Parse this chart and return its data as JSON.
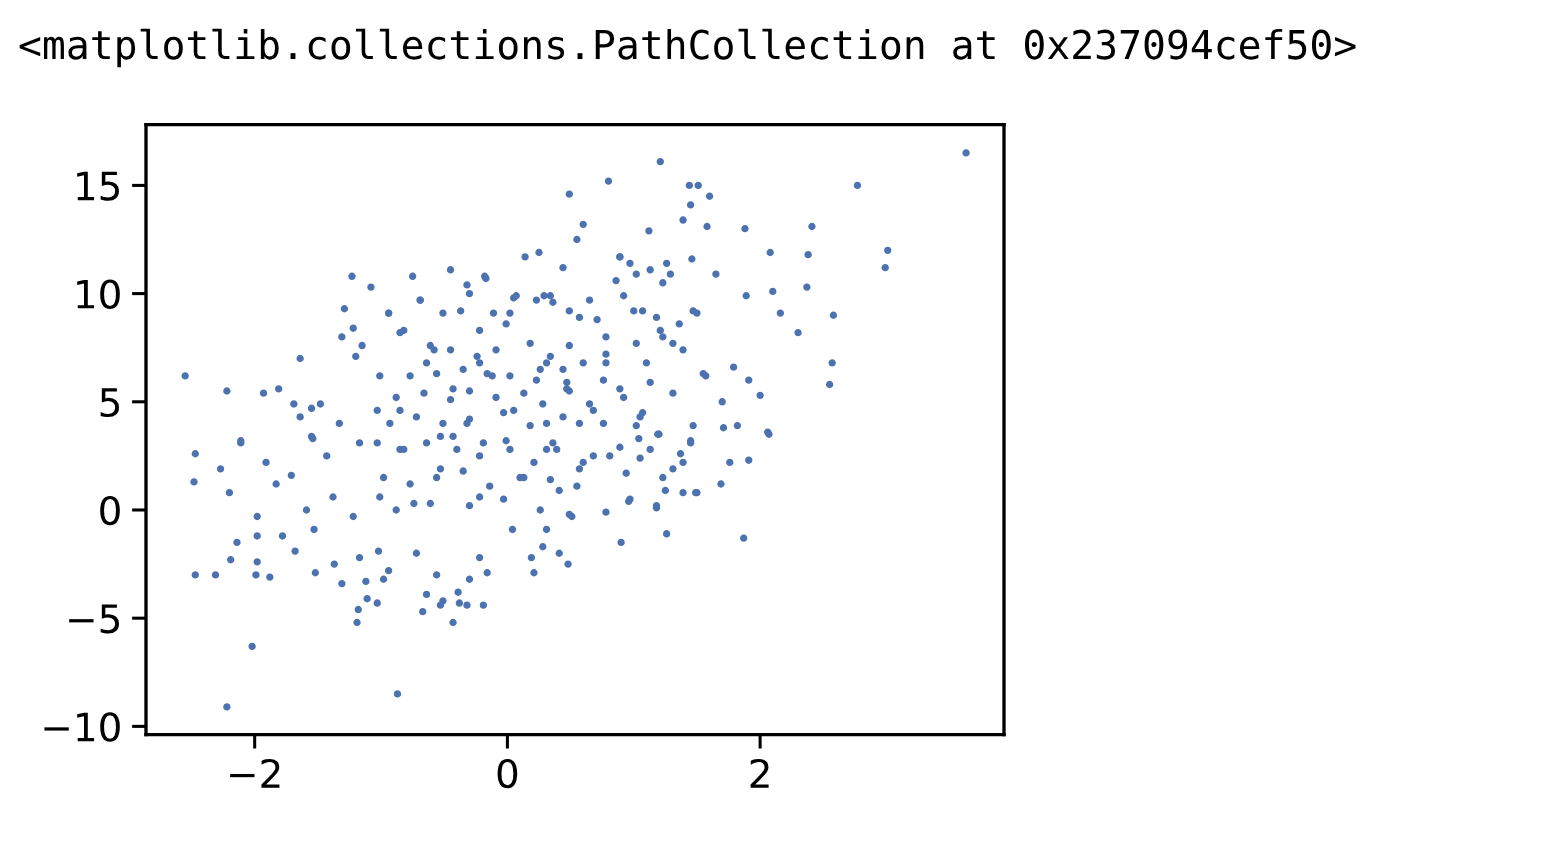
{
  "chart_data": {
    "type": "scatter",
    "annotations": [
      "<matplotlib.collections.PathCollection at 0x237094cef50>"
    ],
    "series": [
      {
        "color": "#4c72b0",
        "x": [
          -2.55,
          -2.22,
          -2.11,
          -1.93,
          -1.81,
          -1.64,
          -1.23,
          -1.08,
          -1.29,
          -1.22,
          -1.31,
          -1.2,
          -1.15,
          -0.94,
          -0.75,
          -0.45,
          -0.18,
          0.14,
          0.25,
          0.29,
          -0.32,
          -1.69,
          -1.64,
          -1.55,
          -1.48,
          -1.55,
          -1.33,
          -0.82,
          -0.69,
          0.05,
          -1.01,
          -0.58,
          -0.22,
          3.63,
          1.21,
          0.8,
          0.49,
          1.44,
          1.51,
          1.45,
          1.6,
          2.77,
          2.41,
          1.88,
          1.58,
          1.39,
          1.12,
          0.6,
          0.55,
          3.01,
          2.99,
          2.38,
          2.37,
          2.08,
          2.58,
          2.3,
          2.57,
          2.55,
          2.16,
          2.06,
          1.82,
          1.71,
          1.45,
          1.2,
          2.0,
          1.91,
          1.79,
          1.7,
          1.57,
          1.89,
          1.65,
          2.1,
          1.29,
          0.89,
          0.44,
          1.47,
          1.21,
          1.0,
          0.78,
          0.57,
          0.36,
          1.1,
          1.31,
          0.89,
          0.47,
          0.68,
          1.05,
          -2.47,
          -2.48,
          -2.47,
          -2.31,
          -2.27,
          -2.2,
          -2.11,
          -2.19,
          -2.14,
          -2.22,
          -2.02,
          -1.99,
          -1.88,
          -1.98,
          -1.98,
          -1.98,
          -1.91,
          -1.83,
          -1.71,
          -1.78,
          -1.68,
          -1.52,
          -1.37,
          -1.31,
          -1.19,
          -1.18,
          -1.11,
          -1.12,
          -1.03,
          -0.98,
          -0.94,
          -1.17,
          -1.02,
          -0.87,
          -0.67,
          -0.64,
          -0.56,
          -0.53,
          -0.51,
          -0.43,
          -0.39,
          -0.38,
          -0.3,
          -0.19,
          -0.32,
          -0.16,
          -0.22,
          0.21,
          0.19,
          0.04,
          -0.72,
          -1.22,
          -1.53,
          -1.59,
          -1.38,
          -1.01,
          -1.54,
          -1.43,
          1.87,
          1.26,
          0.9,
          0.48,
          0.41,
          0.28,
          1.18,
          0.96,
          0.78,
          0.51,
          1.39,
          1.49,
          1.69,
          1.76,
          1.91,
          1.45,
          1.37,
          1.31,
          1.25,
          1.04,
          1.19,
          2.07,
          0.89,
          1.05,
          0.94,
          0.57,
          0.31,
          -0.64,
          -0.43,
          -0.12,
          0.05,
          -0.32,
          0.26,
          -0.85,
          -0.53,
          -0.01,
          -0.22,
          0.31,
          0.47,
          0.31,
          0.57,
          0.78,
          -1.17,
          -0.85,
          -0.53,
          -0.22,
          0.1,
          0.31,
          -0.74,
          -0.22,
          -0.43,
          -0.01,
          0.26,
          0.36,
          0.41,
          0.68,
          -0.17,
          0.89,
          0.97,
          1.13,
          1.26,
          1.46,
          0.86,
          1.02,
          1.23,
          -0.69,
          -0.51,
          -0.37,
          -0.3,
          -0.11,
          0.02,
          0.07,
          0.23,
          0.34,
          0.49,
          0.65,
          0.71,
          0.92,
          1.07,
          1.18,
          1.36,
          1.5,
          -0.94,
          -0.85,
          -0.61,
          -0.45,
          -0.24,
          -0.09,
          0.18,
          0.34,
          0.49,
          0.6,
          0.78,
          1.02,
          1.23,
          1.39,
          1.55,
          -0.77,
          -0.56,
          -0.35,
          -0.16,
          0.02,
          0.23,
          0.44,
          0.76,
          1.13,
          -1.03,
          -0.88,
          -0.66,
          -0.45,
          -0.3,
          -0.09,
          0.13,
          0.28,
          0.49,
          0.65,
          0.92,
          1.07,
          1.31,
          1.47,
          -0.93,
          -0.72,
          -0.51,
          -0.3,
          -0.03,
          0.18,
          0.44,
          0.76,
          1.02,
          -1.03,
          -0.82,
          -0.64,
          -0.4,
          -0.19,
          0.02,
          0.21,
          0.39,
          0.6,
          0.81,
          -0.98,
          -0.77,
          -0.56,
          -0.35,
          -0.14,
          0.13,
          0.34,
          0.55,
          -0.88,
          -0.61,
          -0.3,
          -0.03,
          0.49,
          0.97,
          1.18,
          1.23,
          1.13,
          1.39,
          1.5
        ],
        "values": [
          6.2,
          5.5,
          3.2,
          5.4,
          5.6,
          7.0,
          10.8,
          10.3,
          9.3,
          8.4,
          8.0,
          7.1,
          7.6,
          9.1,
          10.8,
          11.1,
          10.8,
          11.7,
          11.9,
          9.9,
          10.4,
          4.9,
          4.3,
          4.7,
          4.9,
          3.4,
          4.0,
          8.3,
          9.7,
          9.8,
          6.2,
          7.4,
          6.8,
          16.5,
          16.1,
          15.2,
          14.6,
          15.0,
          15.0,
          14.1,
          14.5,
          15.0,
          13.1,
          13.0,
          13.1,
          13.4,
          12.9,
          13.2,
          12.5,
          12.0,
          11.2,
          11.8,
          10.3,
          11.9,
          9.0,
          8.2,
          6.8,
          5.8,
          9.1,
          3.6,
          3.9,
          3.8,
          3.2,
          3.5,
          5.3,
          6.0,
          6.6,
          5.0,
          6.2,
          9.9,
          10.9,
          10.1,
          10.9,
          11.7,
          11.2,
          9.2,
          8.3,
          9.2,
          8.0,
          8.9,
          9.6,
          6.8,
          7.7,
          5.6,
          5.9,
          4.6,
          4.3,
          2.6,
          1.3,
          -3.0,
          -3.0,
          1.9,
          0.8,
          3.1,
          -2.3,
          -1.5,
          -9.1,
          -6.3,
          -3.0,
          -3.1,
          -2.4,
          -1.2,
          -0.3,
          2.2,
          1.2,
          1.6,
          -1.2,
          -1.9,
          -2.9,
          -2.5,
          -3.4,
          -5.2,
          -4.6,
          -4.1,
          -3.3,
          -4.3,
          -3.2,
          -2.8,
          -2.2,
          -1.9,
          -8.5,
          -4.7,
          -3.9,
          -3.0,
          -4.4,
          -4.2,
          -5.2,
          -3.8,
          -4.3,
          -3.2,
          -4.4,
          -4.4,
          -2.9,
          -2.2,
          -2.9,
          -2.2,
          -0.9,
          -2.0,
          -0.3,
          -0.9,
          0.0,
          0.6,
          0.6,
          3.3,
          2.5,
          -1.3,
          -1.1,
          -1.5,
          -2.5,
          -2.0,
          -1.7,
          0.1,
          0.4,
          -0.1,
          -0.3,
          0.8,
          0.8,
          1.2,
          2.2,
          2.3,
          3.1,
          2.6,
          1.9,
          0.9,
          3.3,
          3.5,
          3.5,
          2.9,
          2.4,
          1.7,
          1.9,
          -0.9,
          6.8,
          5.6,
          6.2,
          4.6,
          4.0,
          6.5,
          4.6,
          3.4,
          8.6,
          8.3,
          6.8,
          5.6,
          4.0,
          4.0,
          6.8,
          3.1,
          2.8,
          1.9,
          2.5,
          1.5,
          2.8,
          0.3,
          0.6,
          3.4,
          3.2,
          0.0,
          3.1,
          0.9,
          2.5,
          10.7,
          11.7,
          11.4,
          11.1,
          11.4,
          11.6,
          10.6,
          10.9,
          10.5,
          9.7,
          9.1,
          9.2,
          10.0,
          9.1,
          9.1,
          9.9,
          9.7,
          9.9,
          9.2,
          9.7,
          8.8,
          9.9,
          9.2,
          8.9,
          8.6,
          9.1,
          9.1,
          8.2,
          7.6,
          7.4,
          7.1,
          7.4,
          7.7,
          7.1,
          7.6,
          6.8,
          7.2,
          7.7,
          8.0,
          7.4,
          6.3,
          6.2,
          6.3,
          6.5,
          6.3,
          6.2,
          6.0,
          6.5,
          6.0,
          5.9,
          4.6,
          5.2,
          5.4,
          5.1,
          5.5,
          5.2,
          5.4,
          4.9,
          5.5,
          4.9,
          5.2,
          4.5,
          5.4,
          3.9,
          4.0,
          4.3,
          4.0,
          4.2,
          4.5,
          3.9,
          4.3,
          4.0,
          3.9,
          3.1,
          2.8,
          3.1,
          2.8,
          3.1,
          2.8,
          2.2,
          2.8,
          2.2,
          2.5,
          1.5,
          1.2,
          1.5,
          1.8,
          1.1,
          1.5,
          1.4,
          1.1,
          0.0,
          0.3,
          0.2,
          0.5,
          -0.2,
          0.5,
          0.2,
          1.5,
          2.8,
          2.2,
          0.8
        ]
      }
    ],
    "marker": "circle",
    "grid": false,
    "xlim": [
      -2.86,
      3.93
    ],
    "ylim": [
      -10.38,
      17.81
    ],
    "xticks": [
      {
        "value": -2,
        "label": "−2"
      },
      0,
      2
    ],
    "yticks": [
      {
        "value": -10,
        "label": "−10"
      },
      {
        "value": -5,
        "label": "−5"
      },
      0,
      5,
      10,
      15
    ]
  }
}
